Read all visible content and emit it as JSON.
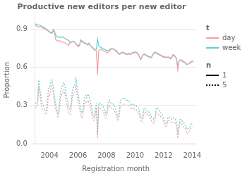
{
  "chart_data": {
    "type": "line",
    "title": "Productive new editors per new editor",
    "xlabel": "Registration month",
    "ylabel": "Proportion",
    "x": [
      2003.0,
      2003.084,
      2003.1679,
      2003.2519,
      2003.3359,
      2003.4198,
      2003.5038,
      2003.5878,
      2003.6717,
      2003.7557,
      2003.8396,
      2003.9236,
      2004.0076,
      2004.0915,
      2004.1755,
      2004.2595,
      2004.3434,
      2004.4274,
      2004.5114,
      2004.5953,
      2004.6793,
      2004.7633,
      2004.8472,
      2004.9312,
      2005.0152,
      2005.0991,
      2005.1831,
      2005.267,
      2005.351,
      2005.435,
      2005.5189,
      2005.6029,
      2005.6869,
      2005.7708,
      2005.8548,
      2005.9388,
      2006.0227,
      2006.1067,
      2006.1907,
      2006.2746,
      2006.3586,
      2006.4426,
      2006.5265,
      2006.6105,
      2006.6944,
      2006.7784,
      2006.8624,
      2006.9463,
      2007.0303,
      2007.1143,
      2007.1982,
      2007.2822,
      2007.3662,
      2007.4501,
      2007.5341,
      2007.6181,
      2007.702,
      2007.786,
      2007.8699,
      2007.9539,
      2008.0379,
      2008.1218,
      2008.2058,
      2008.2898,
      2008.3737,
      2008.4577,
      2008.5417,
      2008.6256,
      2008.7096,
      2008.7936,
      2008.8775,
      2008.9615,
      2009.0455,
      2009.1294,
      2009.2134,
      2009.2973,
      2009.3813,
      2009.4653,
      2009.5492,
      2009.6332,
      2009.7172,
      2009.8011,
      2009.8851,
      2009.9691,
      2010.053,
      2010.137,
      2010.221,
      2010.3049,
      2010.3889,
      2010.4729,
      2010.5568,
      2010.6408,
      2010.7247,
      2010.8087,
      2010.8927,
      2010.9766,
      2011.0606,
      2011.1446,
      2011.2285,
      2011.3125,
      2011.3965,
      2011.4804,
      2011.5644,
      2011.6484,
      2011.7323,
      2011.8163,
      2011.9003,
      2011.9842,
      2012.0682,
      2012.1521,
      2012.2361,
      2012.3201,
      2012.404,
      2012.488,
      2012.572,
      2012.6559,
      2012.7399,
      2012.8239,
      2012.9078,
      2012.9918,
      2013.0758,
      2013.1597,
      2013.2437,
      2013.3277,
      2013.4116,
      2013.4956,
      2013.5795,
      2013.6635,
      2013.7475,
      2013.8314,
      2013.9154,
      2013.9994,
      2014.0833
    ],
    "series": [
      {
        "color": "#F4A0A0",
        "line_style": "solid",
        "values": [
          0.93,
          0.925,
          0.92,
          0.915,
          0.92,
          0.916,
          0.91,
          0.905,
          0.9,
          0.895,
          0.89,
          0.885,
          0.88,
          0.875,
          0.87,
          0.885,
          0.875,
          0.82,
          0.81,
          0.805,
          0.81,
          0.805,
          0.8,
          0.795,
          0.795,
          0.79,
          0.785,
          0.78,
          0.77,
          0.8,
          0.795,
          0.8,
          0.805,
          0.795,
          0.78,
          0.77,
          0.76,
          0.77,
          0.81,
          0.81,
          0.8,
          0.795,
          0.79,
          0.785,
          0.78,
          0.79,
          0.77,
          0.76,
          0.75,
          0.74,
          0.73,
          0.73,
          0.54,
          0.73,
          0.74,
          0.74,
          0.735,
          0.73,
          0.725,
          0.72,
          0.71,
          0.72,
          0.73,
          0.74,
          0.745,
          0.74,
          0.74,
          0.735,
          0.73,
          0.715,
          0.7,
          0.705,
          0.71,
          0.715,
          0.71,
          0.705,
          0.7,
          0.7,
          0.705,
          0.7,
          0.7,
          0.715,
          0.71,
          0.72,
          0.715,
          0.71,
          0.7,
          0.68,
          0.66,
          0.68,
          0.7,
          0.705,
          0.7,
          0.695,
          0.69,
          0.685,
          0.68,
          0.68,
          0.7,
          0.715,
          0.72,
          0.715,
          0.71,
          0.705,
          0.7,
          0.695,
          0.69,
          0.685,
          0.685,
          0.68,
          0.68,
          0.68,
          0.68,
          0.67,
          0.68,
          0.7,
          0.695,
          0.685,
          0.67,
          0.58,
          0.65,
          0.66,
          0.655,
          0.65,
          0.645,
          0.64,
          0.63,
          0.62,
          0.63,
          0.63,
          0.64,
          0.645,
          0.65
        ]
      },
      {
        "color": "#5ECECE",
        "line_style": "solid",
        "values": [
          0.94,
          0.938,
          0.935,
          0.932,
          0.93,
          0.925,
          0.92,
          0.915,
          0.91,
          0.9,
          0.895,
          0.88,
          0.875,
          0.87,
          0.865,
          0.895,
          0.885,
          0.855,
          0.84,
          0.835,
          0.84,
          0.835,
          0.835,
          0.84,
          0.83,
          0.825,
          0.82,
          0.815,
          0.81,
          0.8,
          0.795,
          0.8,
          0.805,
          0.795,
          0.785,
          0.775,
          0.77,
          0.775,
          0.815,
          0.8,
          0.795,
          0.79,
          0.785,
          0.78,
          0.775,
          0.785,
          0.77,
          0.765,
          0.755,
          0.745,
          0.74,
          0.74,
          0.82,
          0.77,
          0.76,
          0.755,
          0.75,
          0.745,
          0.74,
          0.735,
          0.73,
          0.73,
          0.74,
          0.745,
          0.748,
          0.745,
          0.74,
          0.73,
          0.72,
          0.71,
          0.705,
          0.71,
          0.715,
          0.72,
          0.715,
          0.71,
          0.705,
          0.705,
          0.71,
          0.705,
          0.705,
          0.715,
          0.715,
          0.72,
          0.718,
          0.715,
          0.705,
          0.685,
          0.66,
          0.675,
          0.695,
          0.7,
          0.695,
          0.69,
          0.685,
          0.68,
          0.675,
          0.675,
          0.695,
          0.71,
          0.715,
          0.71,
          0.705,
          0.7,
          0.695,
          0.69,
          0.685,
          0.68,
          0.68,
          0.675,
          0.675,
          0.675,
          0.675,
          0.665,
          0.675,
          0.695,
          0.69,
          0.68,
          0.665,
          0.595,
          0.65,
          0.655,
          0.65,
          0.645,
          0.64,
          0.635,
          0.625,
          0.62,
          0.628,
          0.635,
          0.645,
          0.648,
          0.643
        ]
      },
      {
        "color": "#F4A0A0",
        "line_style": "dotted",
        "values": [
          0.28,
          0.29,
          0.3,
          0.45,
          0.38,
          0.3,
          0.27,
          0.27,
          0.24,
          0.23,
          0.26,
          0.38,
          0.38,
          0.43,
          0.45,
          0.4,
          0.33,
          0.27,
          0.24,
          0.21,
          0.25,
          0.35,
          0.38,
          0.4,
          0.42,
          0.38,
          0.32,
          0.28,
          0.24,
          0.23,
          0.27,
          0.37,
          0.38,
          0.4,
          0.46,
          0.38,
          0.32,
          0.27,
          0.22,
          0.2,
          0.23,
          0.31,
          0.33,
          0.32,
          0.34,
          0.32,
          0.28,
          0.24,
          0.19,
          0.18,
          0.21,
          0.28,
          0.04,
          0.28,
          0.28,
          0.27,
          0.26,
          0.25,
          0.22,
          0.2,
          0.23,
          0.29,
          0.3,
          0.28,
          0.28,
          0.27,
          0.26,
          0.24,
          0.2,
          0.18,
          0.21,
          0.29,
          0.3,
          0.3,
          0.31,
          0.31,
          0.3,
          0.3,
          0.3,
          0.28,
          0.27,
          0.28,
          0.28,
          0.27,
          0.27,
          0.26,
          0.25,
          0.22,
          0.18,
          0.17,
          0.2,
          0.25,
          0.25,
          0.24,
          0.22,
          0.22,
          0.2,
          0.18,
          0.17,
          0.16,
          0.18,
          0.24,
          0.24,
          0.23,
          0.22,
          0.21,
          0.2,
          0.18,
          0.15,
          0.13,
          0.14,
          0.18,
          0.18,
          0.17,
          0.16,
          0.17,
          0.17,
          0.16,
          0.14,
          0.04,
          0.12,
          0.16,
          0.16,
          0.14,
          0.13,
          0.12,
          0.1,
          0.08,
          0.09,
          0.1,
          0.12,
          0.13,
          0.13
        ]
      },
      {
        "color": "#5ECECE",
        "line_style": "dotted",
        "values": [
          0.31,
          0.32,
          0.34,
          0.5,
          0.42,
          0.35,
          0.31,
          0.3,
          0.27,
          0.26,
          0.3,
          0.43,
          0.44,
          0.48,
          0.5,
          0.45,
          0.38,
          0.31,
          0.27,
          0.24,
          0.29,
          0.4,
          0.43,
          0.46,
          0.48,
          0.44,
          0.38,
          0.33,
          0.28,
          0.27,
          0.31,
          0.42,
          0.44,
          0.46,
          0.52,
          0.44,
          0.38,
          0.32,
          0.26,
          0.24,
          0.27,
          0.35,
          0.38,
          0.36,
          0.39,
          0.37,
          0.33,
          0.28,
          0.23,
          0.21,
          0.24,
          0.32,
          0.07,
          0.32,
          0.32,
          0.31,
          0.3,
          0.29,
          0.26,
          0.23,
          0.26,
          0.33,
          0.34,
          0.32,
          0.32,
          0.31,
          0.3,
          0.28,
          0.24,
          0.21,
          0.24,
          0.33,
          0.35,
          0.35,
          0.36,
          0.35,
          0.34,
          0.34,
          0.34,
          0.32,
          0.3,
          0.31,
          0.31,
          0.3,
          0.3,
          0.29,
          0.28,
          0.25,
          0.21,
          0.2,
          0.23,
          0.28,
          0.28,
          0.27,
          0.25,
          0.25,
          0.23,
          0.21,
          0.2,
          0.19,
          0.21,
          0.28,
          0.28,
          0.27,
          0.25,
          0.24,
          0.23,
          0.21,
          0.18,
          0.16,
          0.17,
          0.21,
          0.21,
          0.2,
          0.19,
          0.2,
          0.2,
          0.19,
          0.17,
          0.07,
          0.14,
          0.19,
          0.19,
          0.17,
          0.16,
          0.15,
          0.13,
          0.11,
          0.12,
          0.13,
          0.15,
          0.16,
          0.16
        ]
      }
    ],
    "xlim": [
      2003.0,
      2014.3
    ],
    "ylim": [
      0.0,
      1.0
    ],
    "xticks": [
      2004,
      2006,
      2008,
      2010,
      2012,
      2014
    ],
    "yticks": [
      {
        "value": 0.0,
        "label": "0.0"
      },
      0.3,
      0.6,
      0.9
    ],
    "grid": "y",
    "legend": "right",
    "legend_groups": [
      {
        "title": "t",
        "entries": [
          {
            "name": "day",
            "color": "#F4A0A0",
            "line_style": "solid"
          },
          {
            "name": "week",
            "color": "#5ECECE",
            "line_style": "solid"
          }
        ]
      },
      {
        "title": "n",
        "entries": [
          {
            "name": "1",
            "color": "black",
            "line_style": "solid"
          },
          {
            "name": "5",
            "color": "black",
            "line_style": "dotted"
          }
        ]
      }
    ]
  }
}
